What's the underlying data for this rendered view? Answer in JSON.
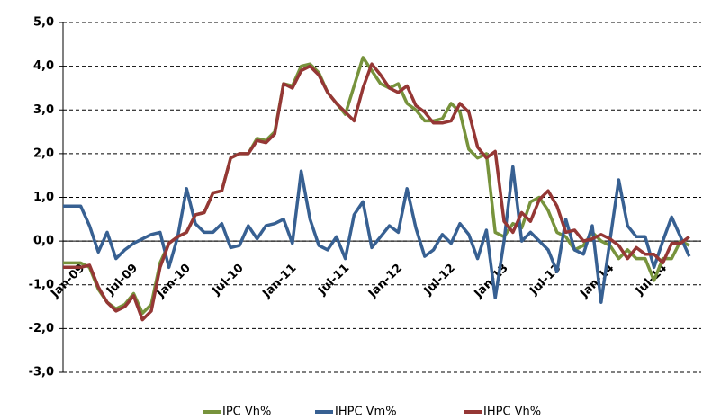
{
  "chart_data": {
    "type": "line",
    "categories": [
      "Jan-09",
      null,
      null,
      null,
      null,
      null,
      "Jul-09",
      null,
      null,
      null,
      null,
      null,
      "Jan-10",
      null,
      null,
      null,
      null,
      null,
      "Jul-10",
      null,
      null,
      null,
      null,
      null,
      "Jan-11",
      null,
      null,
      null,
      null,
      null,
      "Jul-11",
      null,
      null,
      null,
      null,
      null,
      "Jan-12",
      null,
      null,
      null,
      null,
      null,
      "Jul-12",
      null,
      null,
      null,
      null,
      null,
      "Jan-13",
      null,
      null,
      null,
      null,
      null,
      "Jul-13",
      null,
      null,
      null,
      null,
      null,
      "Jan-14",
      null,
      null,
      null,
      null,
      null,
      "Jul-14",
      null,
      null,
      null,
      null,
      null
    ],
    "series": [
      {
        "name": "IPC Vh%",
        "color": "#77933c",
        "values": [
          -0.5,
          -0.5,
          -0.5,
          -0.6,
          -1.1,
          -1.4,
          -1.55,
          -1.45,
          -1.2,
          -1.65,
          -1.45,
          -0.5,
          -0.05,
          0.1,
          0.2,
          0.6,
          0.65,
          1.1,
          1.15,
          1.9,
          2.0,
          2.0,
          2.35,
          2.3,
          2.5,
          3.6,
          3.55,
          4.0,
          4.05,
          3.85,
          3.4,
          3.15,
          2.9,
          3.55,
          4.2,
          3.9,
          3.6,
          3.5,
          3.6,
          3.15,
          3.0,
          2.75,
          2.75,
          2.8,
          3.15,
          2.95,
          2.1,
          1.9,
          2.0,
          0.2,
          0.1,
          0.4,
          0.3,
          0.9,
          1.0,
          0.7,
          0.2,
          0.1,
          -0.2,
          -0.1,
          0.2,
          0.0,
          -0.1,
          -0.4,
          -0.2,
          -0.4,
          -0.4,
          -0.9,
          -0.4,
          -0.4,
          0.0,
          -0.1
        ]
      },
      {
        "name": "IHPC Vm%",
        "color": "#376092",
        "values": [
          0.8,
          0.8,
          0.8,
          0.35,
          -0.25,
          0.2,
          -0.4,
          -0.2,
          -0.05,
          0.05,
          0.15,
          0.2,
          -0.6,
          0.1,
          1.2,
          0.4,
          0.2,
          0.2,
          0.4,
          -0.15,
          -0.1,
          0.35,
          0.05,
          0.35,
          0.4,
          0.5,
          -0.05,
          1.6,
          0.5,
          -0.1,
          -0.2,
          0.1,
          -0.4,
          0.6,
          0.9,
          -0.15,
          0.1,
          0.35,
          0.2,
          1.2,
          0.3,
          -0.35,
          -0.2,
          0.15,
          -0.05,
          0.4,
          0.15,
          -0.4,
          0.25,
          -1.3,
          0.0,
          1.7,
          0.0,
          0.2,
          0.0,
          -0.2,
          -0.7,
          0.5,
          -0.2,
          -0.3,
          0.35,
          -1.4,
          0.0,
          1.4,
          0.35,
          0.1,
          0.1,
          -0.6,
          0.0,
          0.55,
          0.1,
          -0.35
        ]
      },
      {
        "name": "IHPC Vh%",
        "color": "#953735",
        "values": [
          -0.6,
          -0.6,
          -0.6,
          -0.55,
          -1.05,
          -1.4,
          -1.6,
          -1.5,
          -1.25,
          -1.8,
          -1.6,
          -0.6,
          -0.05,
          0.1,
          0.2,
          0.6,
          0.65,
          1.1,
          1.15,
          1.9,
          2.0,
          2.0,
          2.3,
          2.25,
          2.45,
          3.6,
          3.5,
          3.9,
          4.0,
          3.8,
          3.4,
          3.15,
          2.95,
          2.75,
          3.5,
          4.05,
          3.8,
          3.5,
          3.4,
          3.55,
          3.1,
          2.95,
          2.7,
          2.7,
          2.75,
          3.15,
          2.95,
          2.15,
          1.9,
          2.05,
          0.45,
          0.2,
          0.65,
          0.45,
          0.95,
          1.15,
          0.8,
          0.2,
          0.25,
          0.0,
          0.05,
          0.15,
          0.05,
          -0.1,
          -0.4,
          -0.15,
          -0.3,
          -0.3,
          -0.5,
          -0.05,
          -0.05,
          0.1
        ]
      }
    ],
    "ylim": [
      -3,
      5
    ],
    "yticks": [
      {
        "value": -3,
        "label": "-3,0"
      },
      {
        "value": -2,
        "label": "-2,0"
      },
      {
        "value": -1,
        "label": "-1,0"
      },
      {
        "value": 0,
        "label": "0,0"
      },
      {
        "value": 1,
        "label": "1,0"
      },
      {
        "value": 2,
        "label": "2,0"
      },
      {
        "value": 3,
        "label": "3,0"
      },
      {
        "value": 4,
        "label": "4,0"
      },
      {
        "value": 5,
        "label": "5,0"
      }
    ],
    "grid": true,
    "legend": "bottom"
  }
}
